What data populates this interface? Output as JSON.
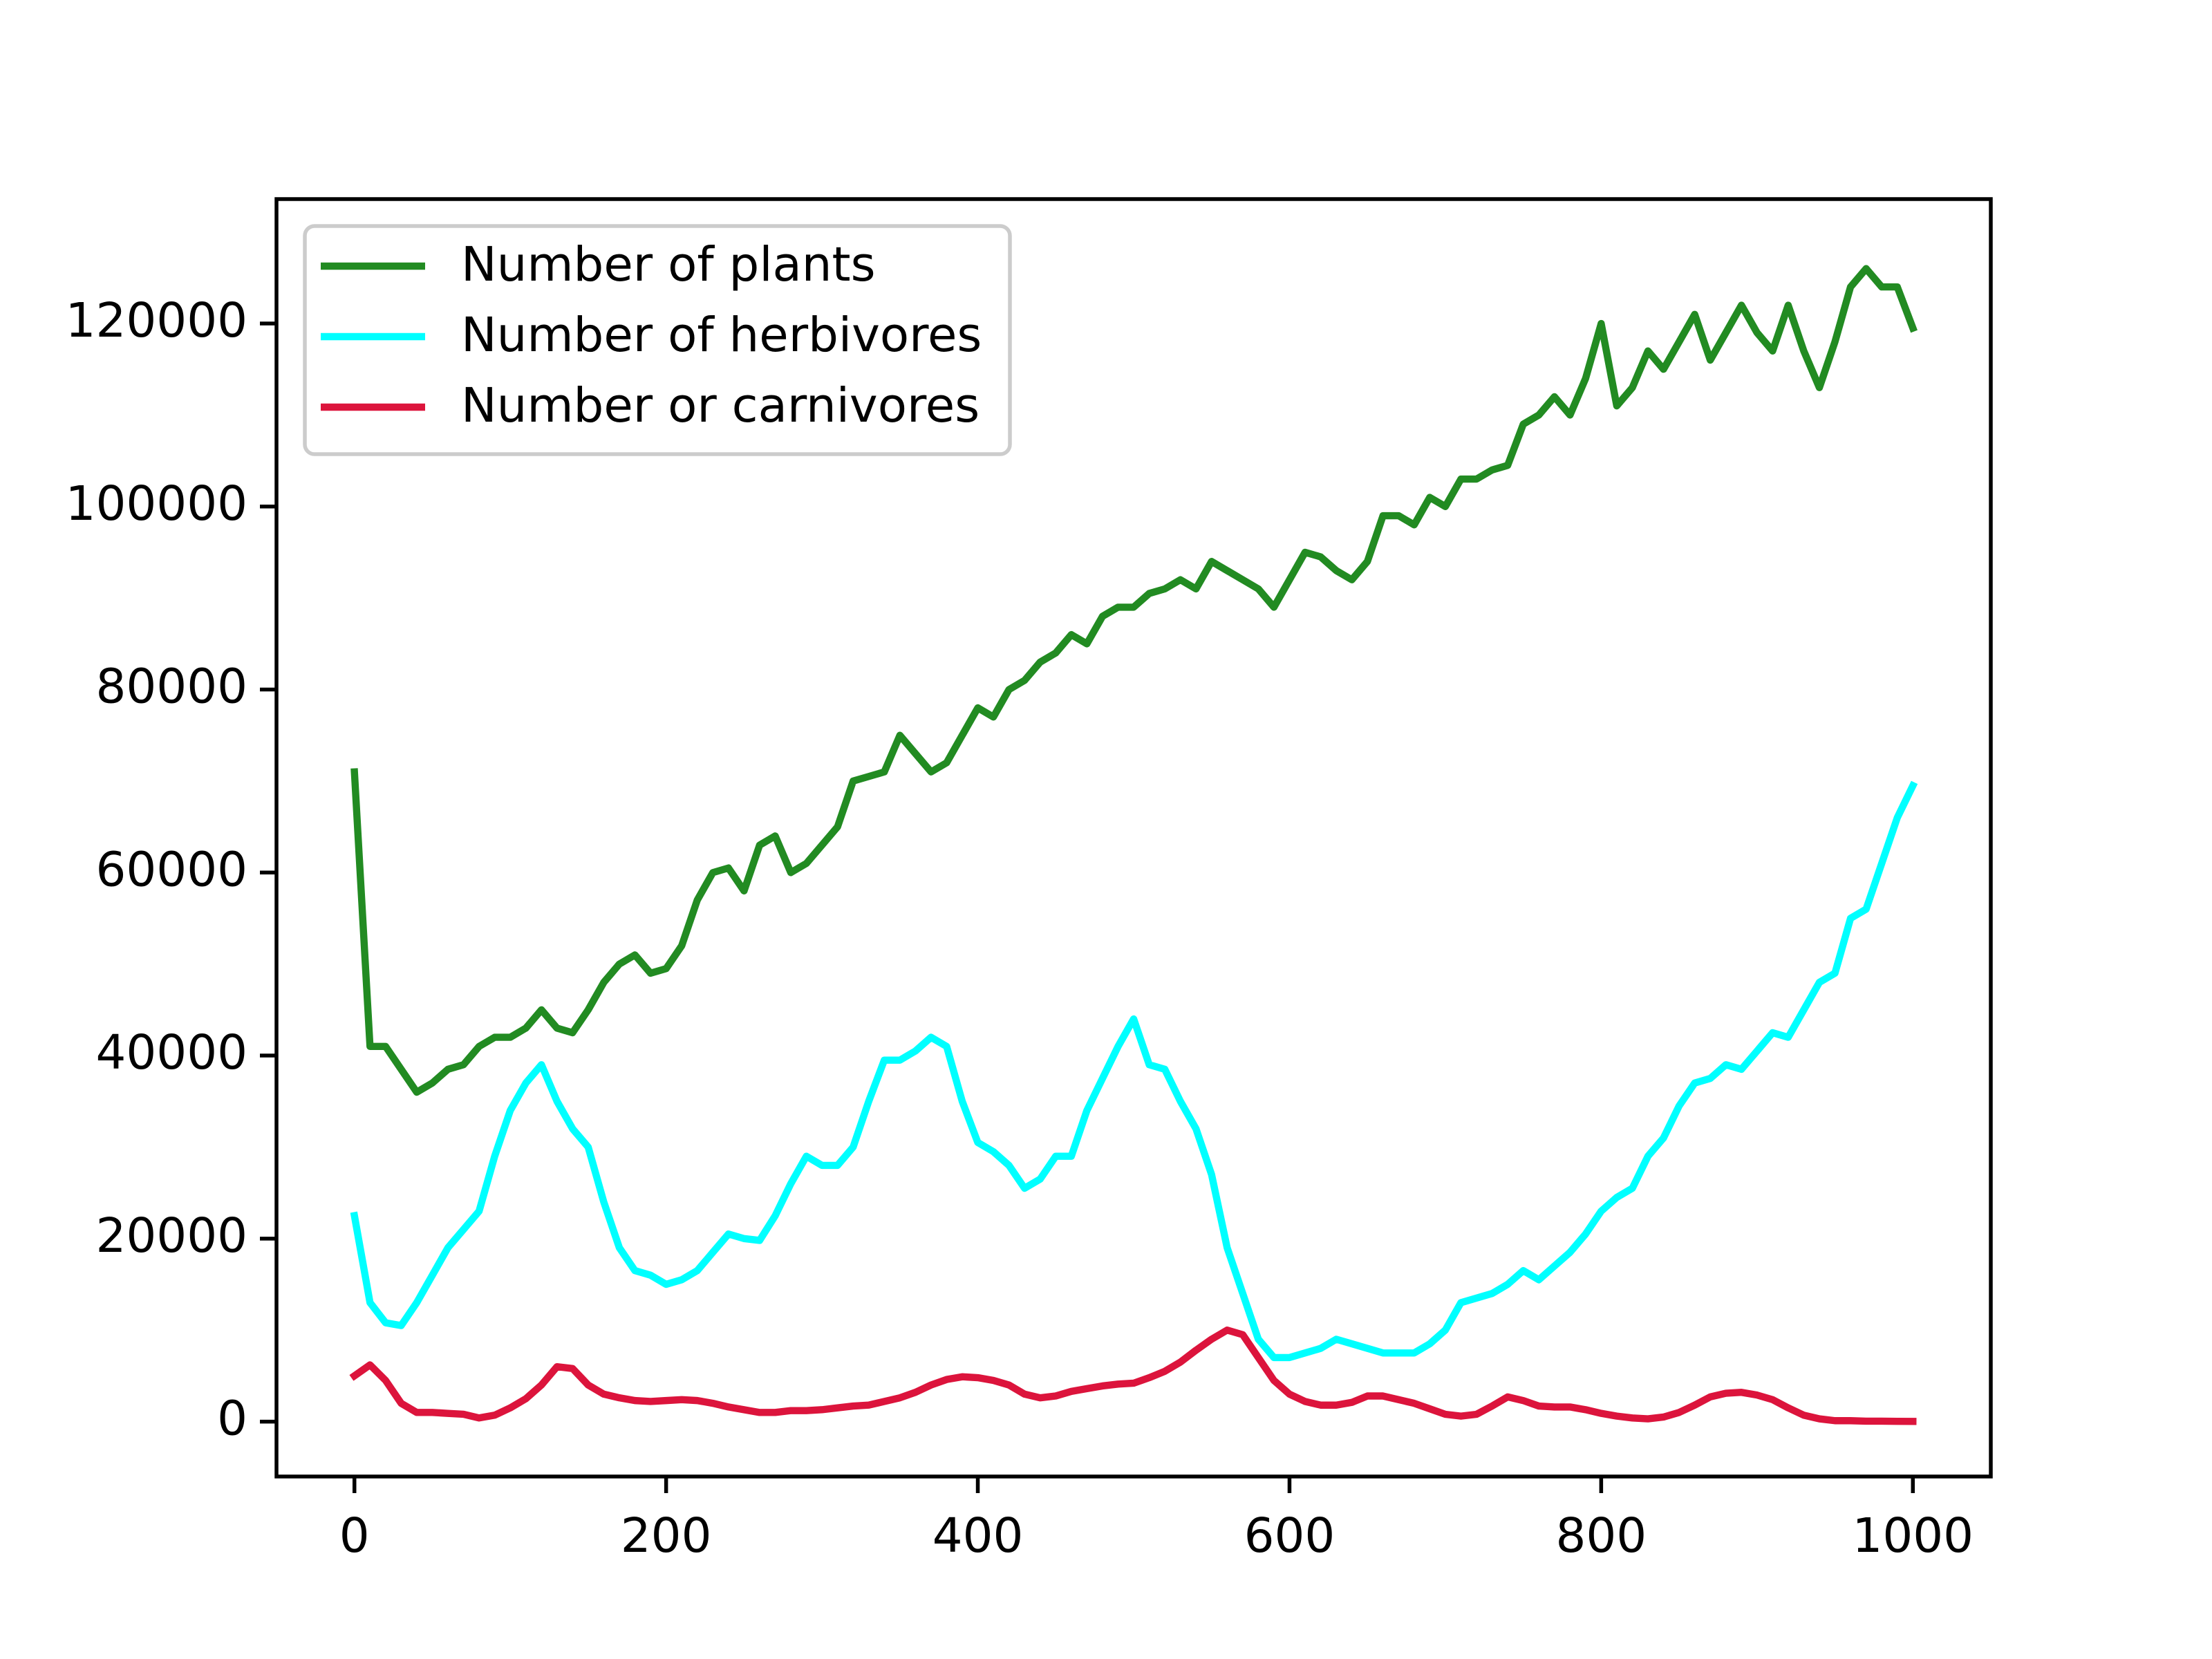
{
  "chart_data": {
    "type": "line",
    "x": [
      0,
      10,
      20,
      30,
      40,
      50,
      60,
      70,
      80,
      90,
      100,
      110,
      120,
      130,
      140,
      150,
      160,
      170,
      180,
      190,
      200,
      210,
      220,
      230,
      240,
      250,
      260,
      270,
      280,
      290,
      300,
      310,
      320,
      330,
      340,
      350,
      360,
      370,
      380,
      390,
      400,
      410,
      420,
      430,
      440,
      450,
      460,
      470,
      480,
      490,
      500,
      510,
      520,
      530,
      540,
      550,
      560,
      570,
      580,
      590,
      600,
      610,
      620,
      630,
      640,
      650,
      660,
      670,
      680,
      690,
      700,
      710,
      720,
      730,
      740,
      750,
      760,
      770,
      780,
      790,
      800,
      810,
      820,
      830,
      840,
      850,
      860,
      870,
      880,
      890,
      900,
      910,
      920,
      930,
      940,
      950,
      960,
      970,
      980,
      990,
      1000
    ],
    "series": [
      {
        "name": "Number of plants",
        "color": "#228b22",
        "values": [
          71000,
          41000,
          41000,
          38500,
          36000,
          37000,
          38500,
          39000,
          41000,
          42000,
          42000,
          43000,
          45000,
          43000,
          42500,
          45000,
          48000,
          50000,
          51000,
          49000,
          49500,
          52000,
          57000,
          60000,
          60500,
          58000,
          63000,
          64000,
          60000,
          61000,
          63000,
          65000,
          70000,
          70500,
          71000,
          75000,
          73000,
          71000,
          72000,
          75000,
          78000,
          77000,
          80000,
          81000,
          83000,
          84000,
          86000,
          85000,
          88000,
          89000,
          89000,
          90500,
          91000,
          92000,
          91000,
          94000,
          93000,
          92000,
          91000,
          89000,
          92000,
          95000,
          94500,
          93000,
          92000,
          94000,
          99000,
          99000,
          98000,
          101000,
          100000,
          103000,
          103000,
          104000,
          104500,
          109000,
          110000,
          112000,
          110000,
          114000,
          120000,
          111000,
          113000,
          117000,
          115000,
          118000,
          121000,
          116000,
          119000,
          122000,
          119000,
          117000,
          122000,
          117000,
          113000,
          118000,
          124000,
          126000,
          124000,
          124000,
          119500
        ]
      },
      {
        "name": "Number of herbivores",
        "color": "#00ffff",
        "values": [
          22500,
          13000,
          10800,
          10500,
          13000,
          16000,
          19000,
          21000,
          23000,
          29000,
          34000,
          37000,
          39000,
          35000,
          32000,
          30000,
          24000,
          19000,
          16500,
          16000,
          15000,
          15500,
          16500,
          18500,
          20500,
          20000,
          19800,
          22500,
          26000,
          29000,
          28000,
          28000,
          30000,
          35000,
          39500,
          39500,
          40500,
          42000,
          41000,
          35000,
          30500,
          29500,
          28000,
          25500,
          26500,
          29000,
          29000,
          34000,
          37500,
          41000,
          44000,
          39000,
          38500,
          35000,
          32000,
          27000,
          19000,
          14000,
          9000,
          7000,
          7000,
          7500,
          8000,
          9000,
          8500,
          8000,
          7500,
          7500,
          7500,
          8500,
          10000,
          13000,
          13500,
          14000,
          15000,
          16500,
          15500,
          17000,
          18500,
          20500,
          23000,
          24500,
          25500,
          29000,
          31000,
          34500,
          37000,
          37500,
          39000,
          38500,
          40500,
          42500,
          42000,
          45000,
          48000,
          49000,
          55000,
          56000,
          61000,
          66000,
          69500
        ]
      },
      {
        "name": "Number or carnivores",
        "color": "#dc143c",
        "values": [
          5000,
          6200,
          4500,
          2000,
          1000,
          1000,
          900,
          800,
          400,
          700,
          1500,
          2500,
          4000,
          6000,
          5800,
          4000,
          3000,
          2600,
          2300,
          2200,
          2300,
          2400,
          2300,
          2000,
          1600,
          1300,
          1000,
          1000,
          1200,
          1200,
          1300,
          1500,
          1700,
          1800,
          2200,
          2600,
          3200,
          4000,
          4600,
          4900,
          4800,
          4500,
          4000,
          3000,
          2600,
          2800,
          3300,
          3600,
          3900,
          4100,
          4200,
          4800,
          5500,
          6500,
          7800,
          9000,
          10000,
          9500,
          7000,
          4500,
          3000,
          2200,
          1800,
          1800,
          2100,
          2800,
          2800,
          2400,
          2000,
          1400,
          800,
          600,
          800,
          1700,
          2700,
          2300,
          1700,
          1600,
          1600,
          1300,
          900,
          600,
          400,
          300,
          500,
          1000,
          1800,
          2700,
          3100,
          3200,
          2900,
          2400,
          1500,
          700,
          300,
          100,
          100,
          50,
          50,
          30,
          20
        ]
      }
    ],
    "xlim": [
      -50,
      1050
    ],
    "xticks": [
      0,
      200,
      400,
      600,
      800,
      1000
    ],
    "ylim": [
      -6000,
      133600
    ],
    "yticks": [
      0,
      20000,
      40000,
      60000,
      80000,
      100000,
      120000
    ],
    "legend": "upper-left"
  }
}
